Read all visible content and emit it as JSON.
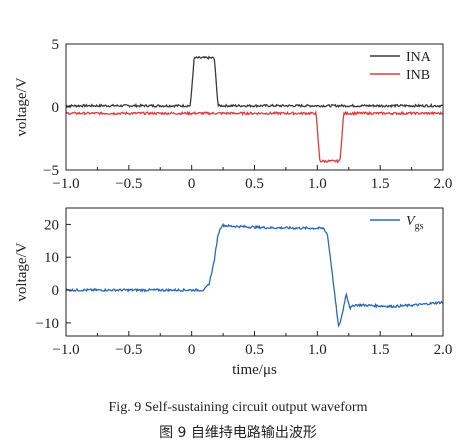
{
  "caption_en": "Fig. 9    Self-sustaining circuit output waveform",
  "caption_zh": "图 9   自维持电路输出波形",
  "chart_data": [
    {
      "type": "line",
      "title": "",
      "xlabel": "",
      "ylabel": "voltage/V",
      "xlim": [
        -1.0,
        2.0
      ],
      "ylim": [
        -5,
        5
      ],
      "x_ticks": [
        "−1.0",
        "−0.5",
        "0",
        "0.5",
        "1.0",
        "1.5",
        "2.0"
      ],
      "y_ticks": [
        "5",
        "0",
        "−5"
      ],
      "x_tick_values": [
        -1.0,
        -0.5,
        0,
        0.5,
        1.0,
        1.5,
        2.0
      ],
      "y_tick_values": [
        5,
        0,
        -5
      ],
      "grid": false,
      "legend": "top-right",
      "series": [
        {
          "name": "INA",
          "color": "#3a3a3a",
          "points": [
            [
              -1.0,
              0.1
            ],
            [
              -0.01,
              0.1
            ],
            [
              0.02,
              3.9
            ],
            [
              0.18,
              3.9
            ],
            [
              0.21,
              0.1
            ],
            [
              2.0,
              0.1
            ]
          ]
        },
        {
          "name": "INB",
          "color": "#e03a3e",
          "points": [
            [
              -1.0,
              -0.5
            ],
            [
              0.99,
              -0.5
            ],
            [
              1.02,
              -4.3
            ],
            [
              1.18,
              -4.3
            ],
            [
              1.21,
              -0.5
            ],
            [
              2.0,
              -0.5
            ]
          ]
        }
      ]
    },
    {
      "type": "line",
      "title": "",
      "xlabel": "time/μs",
      "ylabel": "voltage/V",
      "xlim": [
        -1.0,
        2.0
      ],
      "ylim": [
        -14,
        25
      ],
      "x_ticks": [
        "−1.0",
        "−0.5",
        "0",
        "0.5",
        "1.0",
        "1.5",
        "2.0"
      ],
      "y_ticks": [
        "20",
        "10",
        "0",
        "−10"
      ],
      "x_tick_values": [
        -1.0,
        -0.5,
        0,
        0.5,
        1.0,
        1.5,
        2.0
      ],
      "y_tick_values": [
        20,
        10,
        0,
        -10
      ],
      "grid": false,
      "legend": "top-right",
      "series": [
        {
          "name": "V",
          "name_subscript": "gs",
          "color": "#2a6ab5",
          "points": [
            [
              -1.0,
              0.0
            ],
            [
              0.1,
              0.0
            ],
            [
              0.14,
              2
            ],
            [
              0.18,
              9
            ],
            [
              0.21,
              17
            ],
            [
              0.24,
              19.8
            ],
            [
              0.3,
              19.5
            ],
            [
              0.6,
              19.0
            ],
            [
              1.05,
              18.8
            ],
            [
              1.08,
              17
            ],
            [
              1.11,
              8
            ],
            [
              1.14,
              -2
            ],
            [
              1.17,
              -11.5
            ],
            [
              1.2,
              -7
            ],
            [
              1.23,
              -1
            ],
            [
              1.26,
              -5.5
            ],
            [
              1.3,
              -4.5
            ],
            [
              1.6,
              -5.0
            ],
            [
              1.8,
              -4.5
            ],
            [
              2.0,
              -3.7
            ]
          ]
        }
      ]
    }
  ]
}
